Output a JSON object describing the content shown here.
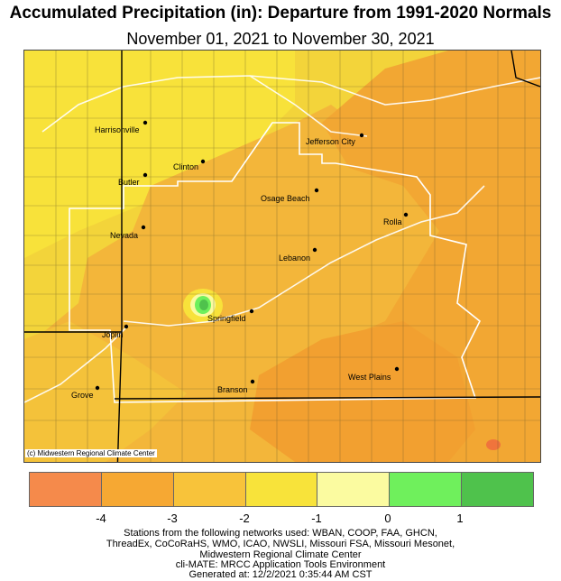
{
  "header": {
    "title": "Accumulated Precipitation (in): Departure from 1991-2020 Normals",
    "subtitle": "November 01, 2021 to November 30, 2021"
  },
  "map": {
    "credit": "(c) Midwestern Regional Climate Center",
    "cities": [
      {
        "name": "Harrisonville"
      },
      {
        "name": "Jefferson City"
      },
      {
        "name": "Clinton"
      },
      {
        "name": "Butler"
      },
      {
        "name": "Osage Beach"
      },
      {
        "name": "Rolla"
      },
      {
        "name": "Nevada"
      },
      {
        "name": "Lebanon"
      },
      {
        "name": "Springfield"
      },
      {
        "name": "Joplin"
      },
      {
        "name": "West Plains"
      },
      {
        "name": "Branson"
      },
      {
        "name": "Grove"
      }
    ]
  },
  "legend": {
    "colors": [
      "#f58a4b",
      "#f6a833",
      "#f8c33a",
      "#f8e33a",
      "#fbfba0",
      "#6ff05c",
      "#4fc24c"
    ],
    "ticks": [
      "-4",
      "-3",
      "-2",
      "-1",
      "0",
      "1"
    ]
  },
  "footer": {
    "lines": [
      "Stations from the following networks used: WBAN, COOP, FAA, GHCN,",
      "ThreadEx, CoCoRaHS, WMO, ICAO, NWSLI, Missouri FSA, Missouri Mesonet,",
      "Midwestern Regional Climate Center",
      "cli-MATE: MRCC Application Tools Environment",
      "Generated at: 12/2/2021 0:35:44 AM CST"
    ]
  }
}
